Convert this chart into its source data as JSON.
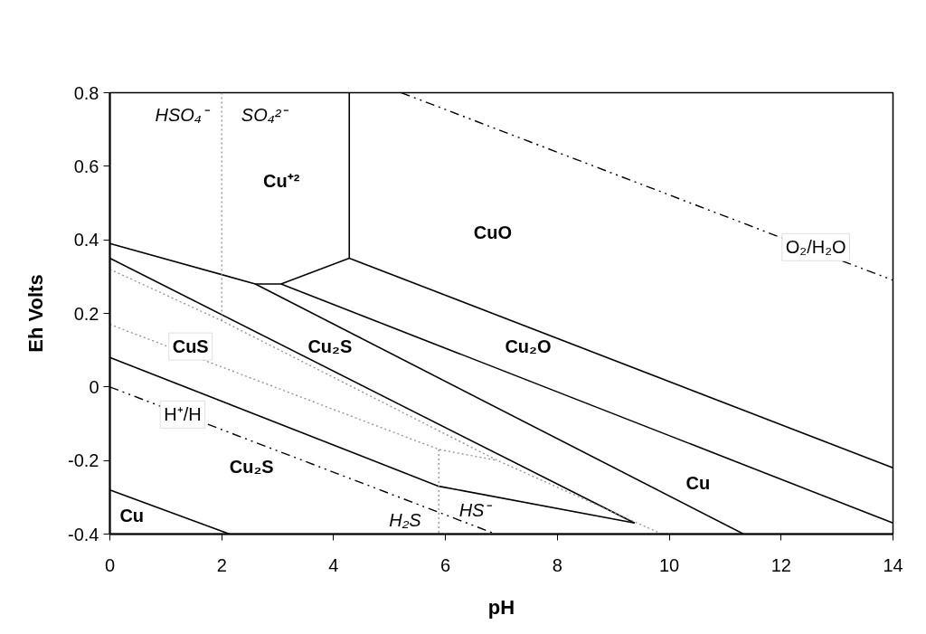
{
  "chart_data": {
    "type": "line",
    "xlabel": "pH",
    "ylabel": "Eh Volts",
    "xlim": [
      0,
      14
    ],
    "ylim": [
      -0.4,
      0.8
    ],
    "xticks": [
      0,
      2,
      4,
      6,
      8,
      10,
      12,
      14
    ],
    "yticks": [
      -0.4,
      -0.2,
      0,
      0.2,
      0.4,
      0.6,
      0.8
    ],
    "series": [
      {
        "color": "#000000",
        "line_style": "solid",
        "x": [
          0,
          2.6,
          3.06,
          4.28,
          4.28
        ],
        "values": [
          0.39,
          0.28,
          0.28,
          0.35,
          0.8
        ]
      },
      {
        "color": "#000000",
        "line_style": "solid",
        "x": [
          4.28,
          14
        ],
        "values": [
          0.35,
          -0.22
        ]
      },
      {
        "color": "#000000",
        "line_style": "solid",
        "x": [
          3.06,
          14
        ],
        "values": [
          0.28,
          -0.37
        ]
      },
      {
        "color": "#000000",
        "line_style": "solid",
        "x": [
          2.6,
          11.33
        ],
        "values": [
          0.28,
          -0.4
        ]
      },
      {
        "color": "#000000",
        "line_style": "solid",
        "x": [
          0,
          9.38
        ],
        "values": [
          0.35,
          -0.37
        ]
      },
      {
        "color": "#000000",
        "line_style": "solid",
        "x": [
          0,
          5.88,
          9.38
        ],
        "values": [
          0.08,
          -0.27,
          -0.37
        ]
      },
      {
        "color": "#000000",
        "line_style": "solid",
        "x": [
          0,
          2.14
        ],
        "values": [
          -0.28,
          -0.4
        ]
      },
      {
        "color": "#000000",
        "line_style": "dashed",
        "x": [
          0,
          6.9
        ],
        "values": [
          0,
          -0.4
        ]
      },
      {
        "color": "#000000",
        "line_style": "dashed",
        "x": [
          5.21,
          14
        ],
        "values": [
          0.8,
          0.29
        ]
      },
      {
        "color": "#909090",
        "line_style": "dotted",
        "x": [
          2,
          2
        ],
        "values": [
          0.8,
          0.18
        ]
      },
      {
        "color": "#909090",
        "line_style": "dotted",
        "x": [
          0,
          2,
          6.93,
          9.87
        ],
        "values": [
          0.32,
          0.18,
          -0.2,
          -0.4
        ]
      },
      {
        "color": "#909090",
        "line_style": "dotted",
        "x": [
          0,
          5.88,
          6.93
        ],
        "values": [
          0.17,
          -0.17,
          -0.2
        ]
      },
      {
        "color": "#909090",
        "line_style": "dotted",
        "x": [
          5.88,
          5.88
        ],
        "values": [
          -0.17,
          -0.4
        ]
      }
    ],
    "annotations": [
      "HSO₄⁻",
      "SO₄²⁻",
      "Cu⁺²",
      "CuO",
      {
        "text": "O₂/H₂O",
        "x": 12.62,
        "y": 0.38
      },
      "CuS",
      "Cu₂S",
      "Cu₂O",
      {
        "text": "H⁺/H",
        "x": 1.3,
        "y": -0.075
      },
      "Cu₂S",
      "HS⁻",
      "H₂S",
      "Cu",
      "Cu"
    ]
  }
}
